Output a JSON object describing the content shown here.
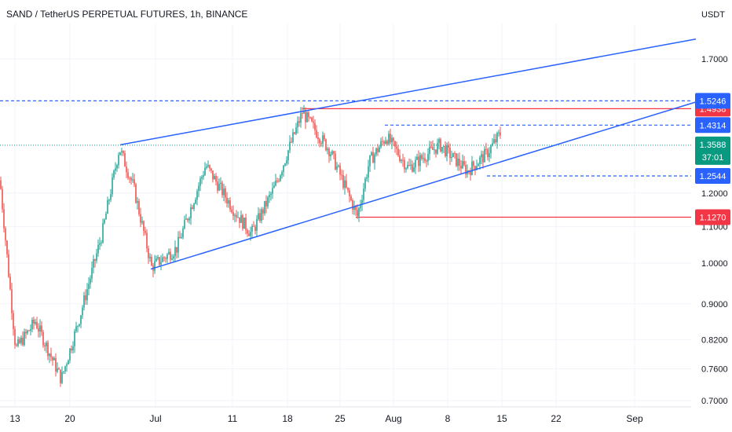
{
  "header": {
    "title": "SAND / TetherUS PERPETUAL FUTURES, 1h, BINANCE",
    "currency": "USDT"
  },
  "colors": {
    "up": "#26a69a",
    "down": "#ef5350",
    "trend": "#2962ff",
    "support_resistance": "#f23645",
    "last_price": "#089981"
  },
  "chart_data": {
    "type": "candlestick",
    "scale": "log",
    "y_ticks": [
      "0.7000",
      "0.7600",
      "0.8200",
      "0.9000",
      "1.0000",
      "1.1000",
      "1.2000",
      "1.7000"
    ],
    "x_ticks": [
      "13",
      "20",
      "Jul",
      "11",
      "18",
      "25",
      "Aug",
      "8",
      "15",
      "22",
      "Sep"
    ],
    "price_path": [
      {
        "t": 0,
        "p": 1.24
      },
      {
        "t": 20,
        "p": 0.8
      },
      {
        "t": 45,
        "p": 0.86
      },
      {
        "t": 78,
        "p": 0.74
      },
      {
        "t": 100,
        "p": 0.86
      },
      {
        "t": 130,
        "p": 1.08
      },
      {
        "t": 152,
        "p": 1.35
      },
      {
        "t": 170,
        "p": 1.22
      },
      {
        "t": 193,
        "p": 0.99
      },
      {
        "t": 225,
        "p": 1.04
      },
      {
        "t": 262,
        "p": 1.29
      },
      {
        "t": 300,
        "p": 1.14
      },
      {
        "t": 320,
        "p": 1.08
      },
      {
        "t": 350,
        "p": 1.22
      },
      {
        "t": 385,
        "p": 1.48
      },
      {
        "t": 420,
        "p": 1.34
      },
      {
        "t": 455,
        "p": 1.13
      },
      {
        "t": 470,
        "p": 1.3
      },
      {
        "t": 492,
        "p": 1.39
      },
      {
        "t": 520,
        "p": 1.28
      },
      {
        "t": 560,
        "p": 1.36
      },
      {
        "t": 595,
        "p": 1.27
      },
      {
        "t": 620,
        "p": 1.33
      },
      {
        "t": 637,
        "p": 1.4
      }
    ],
    "trendlines": [
      {
        "name": "upper-channel",
        "points": [
          {
            "t": 153,
            "p": 1.36
          },
          {
            "t": 886,
            "p": 1.79
          }
        ]
      },
      {
        "name": "lower-channel",
        "points": [
          {
            "t": 192,
            "p": 0.985
          },
          {
            "t": 886,
            "p": 1.52
          }
        ]
      }
    ],
    "levels": [
      {
        "name": "resistance-high",
        "price": 1.4938,
        "label": "1.4938",
        "style": "solid",
        "color": "#f23645",
        "from_t": 385
      },
      {
        "name": "support-low",
        "price": 1.127,
        "label": "1.1270",
        "style": "solid",
        "color": "#f23645",
        "from_t": 453
      },
      {
        "name": "level-1-5246",
        "price": 1.5246,
        "label": "1.5246",
        "style": "dashed",
        "color": "#2962ff",
        "from_t": 0
      },
      {
        "name": "level-1-4314",
        "price": 1.4314,
        "label": "1.4314",
        "style": "dashed",
        "color": "#2962ff",
        "from_t": 490
      },
      {
        "name": "level-1-2544",
        "price": 1.2544,
        "label": "1.2544",
        "style": "dashed",
        "color": "#2962ff",
        "from_t": 620
      }
    ],
    "last_price": {
      "price": 1.3588,
      "label": "1.3588",
      "countdown": "37:01"
    }
  }
}
